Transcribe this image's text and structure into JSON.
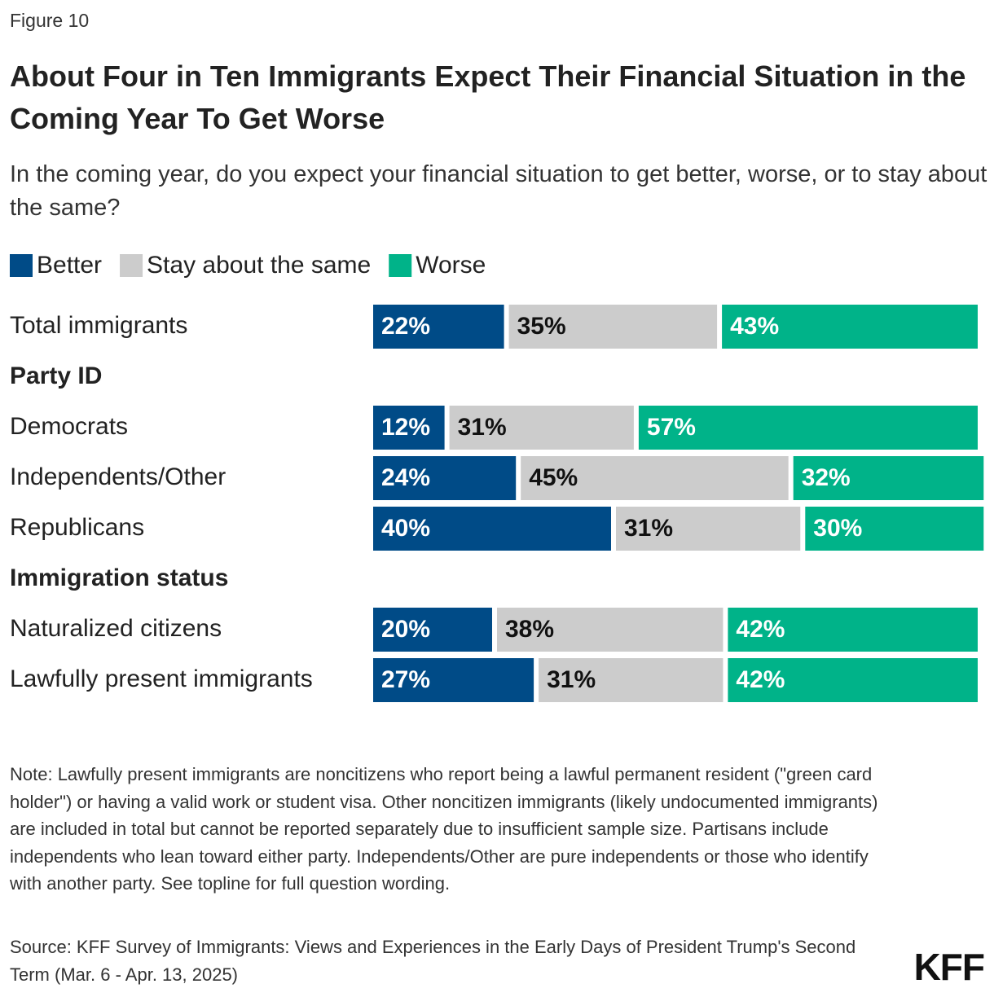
{
  "figure_label": "Figure 10",
  "chart_data": {
    "type": "stacked_bar_horizontal",
    "title": "About Four in Ten Immigrants Expect Their Financial Situation in the Coming Year To Get Worse",
    "subtitle": "In the coming year, do you expect your financial situation to get better, worse, or to stay about the same?",
    "categories": [
      "Total immigrants",
      "Party ID",
      "Democrats",
      "Independents/Other",
      "Republicans",
      "Immigration status",
      "Naturalized citizens",
      "Lawfully present immigrants"
    ],
    "series": [
      {
        "name": "Better",
        "color": "#004b87",
        "values": [
          22,
          null,
          12,
          24,
          40,
          null,
          20,
          27
        ],
        "value_labels": [
          "22%",
          null,
          "12%",
          "24%",
          "40%",
          null,
          "20%",
          "27%"
        ]
      },
      {
        "name": "Stay about the same",
        "color": "#cccccc",
        "values": [
          35,
          null,
          31,
          45,
          31,
          null,
          38,
          31
        ],
        "value_labels": [
          "35%",
          null,
          "31%",
          "45%",
          "31%",
          null,
          "38%",
          "31%"
        ]
      },
      {
        "name": "Worse",
        "color": "#00b389",
        "values": [
          43,
          null,
          57,
          32,
          30,
          null,
          42,
          42
        ],
        "value_labels": [
          "43%",
          null,
          "57%",
          "32%",
          "30%",
          null,
          "42%",
          "42%"
        ]
      }
    ],
    "legend": "top-left",
    "note": "Note: Lawfully present immigrants are noncitizens who report being a lawful permanent resident (\"green card holder\") or having a valid work or student visa. Other noncitizen immigrants (likely undocumented immigrants) are included in total but cannot be reported separately due to insufficient sample size. Partisans include independents who lean toward either party. Independents/Other are pure independents or those who identify with another party. See topline for full question wording.",
    "source": "Source: KFF Survey of Immigrants: Views and Experiences in the Early Days of President Trump's Second Term (Mar. 6 - Apr. 13, 2025)"
  },
  "logo": "KFF"
}
